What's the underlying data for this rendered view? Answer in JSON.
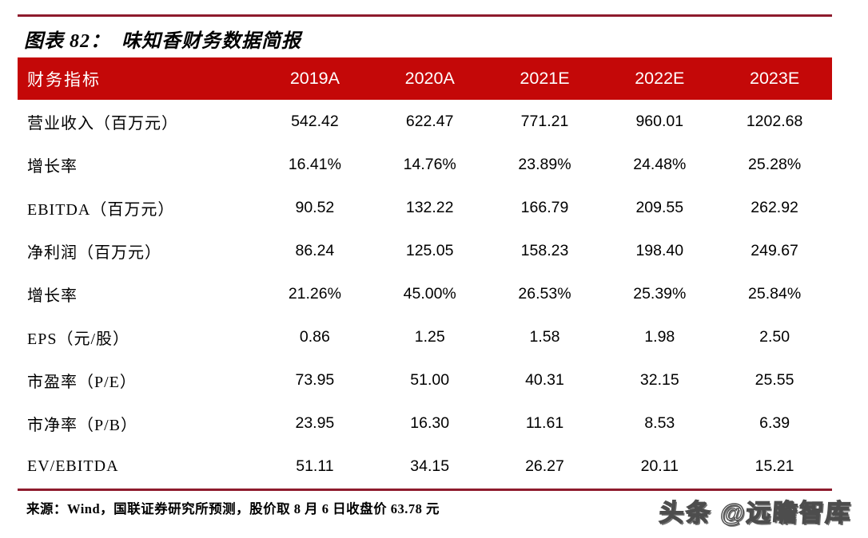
{
  "figure": {
    "title": "图表 82：  味知香财务数据简报"
  },
  "table": {
    "header": {
      "indicator_label": "财务指标",
      "columns": [
        "2019A",
        "2020A",
        "2021E",
        "2022E",
        "2023E"
      ]
    },
    "rows": [
      {
        "label": "营业收入（百万元）",
        "values": [
          "542.42",
          "622.47",
          "771.21",
          "960.01",
          "1202.68"
        ]
      },
      {
        "label": "增长率",
        "values": [
          "16.41%",
          "14.76%",
          "23.89%",
          "24.48%",
          "25.28%"
        ]
      },
      {
        "label": "EBITDA（百万元）",
        "values": [
          "90.52",
          "132.22",
          "166.79",
          "209.55",
          "262.92"
        ]
      },
      {
        "label": "净利润（百万元）",
        "values": [
          "86.24",
          "125.05",
          "158.23",
          "198.40",
          "249.67"
        ]
      },
      {
        "label": "增长率",
        "values": [
          "21.26%",
          "45.00%",
          "26.53%",
          "25.39%",
          "25.84%"
        ]
      },
      {
        "label": "EPS（元/股）",
        "values": [
          "0.86",
          "1.25",
          "1.58",
          "1.98",
          "2.50"
        ]
      },
      {
        "label": "市盈率（P/E）",
        "values": [
          "73.95",
          "51.00",
          "40.31",
          "32.15",
          "25.55"
        ]
      },
      {
        "label": "市净率（P/B）",
        "values": [
          "23.95",
          "16.30",
          "11.61",
          "8.53",
          "6.39"
        ]
      },
      {
        "label": "EV/EBITDA",
        "values": [
          "51.11",
          "34.15",
          "26.27",
          "20.11",
          "15.21"
        ]
      }
    ]
  },
  "footer": {
    "source_note": "来源：Wind，国联证券研究所预测，股价取 8 月 6 日收盘价 63.78 元"
  },
  "watermark": {
    "text": "头条 @远瞻智库"
  },
  "colors": {
    "header_background": "#C40808",
    "header_text": "#FFFFFF",
    "rule_line": "#8E1B2D",
    "body_text": "#000000",
    "page_background": "#FFFFFF"
  }
}
